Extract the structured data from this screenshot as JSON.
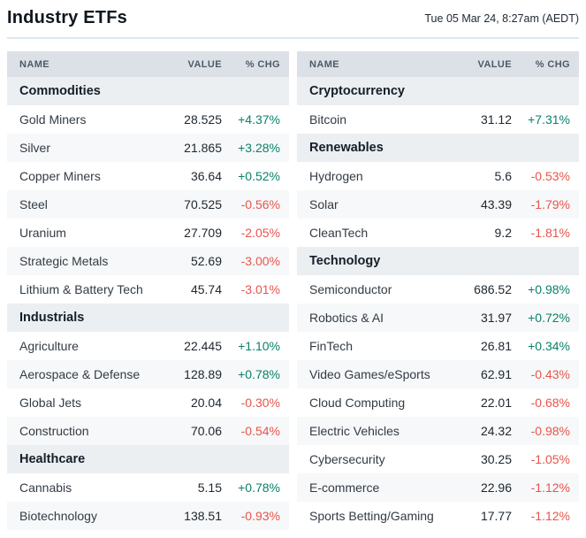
{
  "header": {
    "title": "Industry ETFs",
    "timestamp": "Tue 05 Mar 24, 8:27am (AEDT)"
  },
  "table_headers": {
    "name": "NAME",
    "value": "VALUE",
    "change": "% CHG"
  },
  "colors": {
    "positive": "#0b8168",
    "negative": "#e8544b",
    "header_bg": "#dce1e7",
    "header_text": "#4d5967",
    "section_bg": "#eceff2",
    "row_alt_bg": "#f6f8f9",
    "divider": "#dfe7ee"
  },
  "columns": [
    {
      "sections": [
        {
          "title": "Commodities",
          "rows": [
            {
              "name": "Gold Miners",
              "value": "28.525",
              "change": "+4.37%"
            },
            {
              "name": "Silver",
              "value": "21.865",
              "change": "+3.28%"
            },
            {
              "name": "Copper Miners",
              "value": "36.64",
              "change": "+0.52%"
            },
            {
              "name": "Steel",
              "value": "70.525",
              "change": "-0.56%"
            },
            {
              "name": "Uranium",
              "value": "27.709",
              "change": "-2.05%"
            },
            {
              "name": "Strategic Metals",
              "value": "52.69",
              "change": "-3.00%"
            },
            {
              "name": "Lithium & Battery Tech",
              "value": "45.74",
              "change": "-3.01%"
            }
          ]
        },
        {
          "title": "Industrials",
          "rows": [
            {
              "name": "Agriculture",
              "value": "22.445",
              "change": "+1.10%"
            },
            {
              "name": "Aerospace & Defense",
              "value": "128.89",
              "change": "+0.78%"
            },
            {
              "name": "Global Jets",
              "value": "20.04",
              "change": "-0.30%"
            },
            {
              "name": "Construction",
              "value": "70.06",
              "change": "-0.54%"
            }
          ]
        },
        {
          "title": "Healthcare",
          "rows": [
            {
              "name": "Cannabis",
              "value": "5.15",
              "change": "+0.78%"
            },
            {
              "name": "Biotechnology",
              "value": "138.51",
              "change": "-0.93%"
            }
          ]
        }
      ]
    },
    {
      "sections": [
        {
          "title": "Cryptocurrency",
          "rows": [
            {
              "name": "Bitcoin",
              "value": "31.12",
              "change": "+7.31%"
            }
          ]
        },
        {
          "title": "Renewables",
          "rows": [
            {
              "name": "Hydrogen",
              "value": "5.6",
              "change": "-0.53%"
            },
            {
              "name": "Solar",
              "value": "43.39",
              "change": "-1.79%"
            },
            {
              "name": "CleanTech",
              "value": "9.2",
              "change": "-1.81%"
            }
          ]
        },
        {
          "title": "Technology",
          "rows": [
            {
              "name": "Semiconductor",
              "value": "686.52",
              "change": "+0.98%"
            },
            {
              "name": "Robotics & AI",
              "value": "31.97",
              "change": "+0.72%"
            },
            {
              "name": "FinTech",
              "value": "26.81",
              "change": "+0.34%"
            },
            {
              "name": "Video Games/eSports",
              "value": "62.91",
              "change": "-0.43%"
            },
            {
              "name": "Cloud Computing",
              "value": "22.01",
              "change": "-0.68%"
            },
            {
              "name": "Electric Vehicles",
              "value": "24.32",
              "change": "-0.98%"
            },
            {
              "name": "Cybersecurity",
              "value": "30.25",
              "change": "-1.05%"
            },
            {
              "name": "E-commerce",
              "value": "22.96",
              "change": "-1.12%"
            },
            {
              "name": "Sports Betting/Gaming",
              "value": "17.77",
              "change": "-1.12%"
            }
          ]
        }
      ]
    }
  ]
}
